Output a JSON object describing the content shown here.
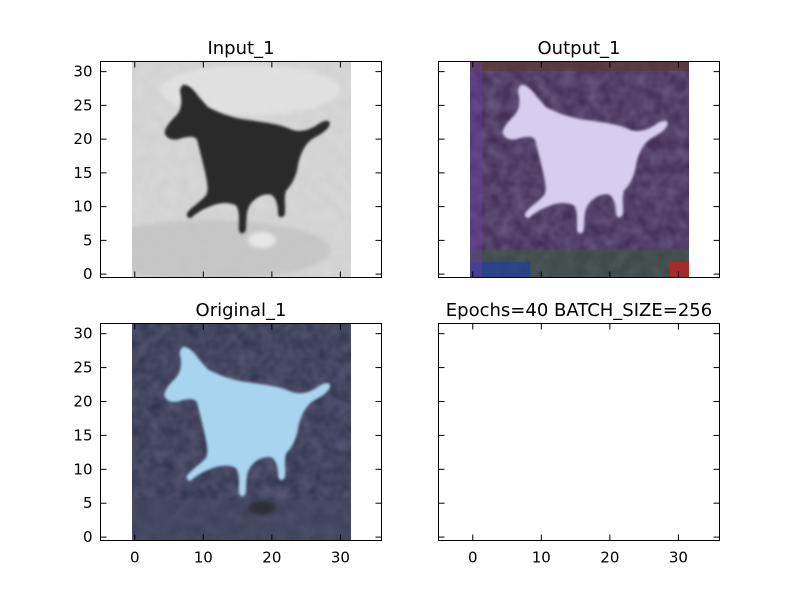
{
  "figure": {
    "background": "#ffffff"
  },
  "chart_data": [
    {
      "type": "image",
      "title": "Input_1",
      "image": "grayscale-dark-horse-on-light-background",
      "xlim": [
        -5,
        36
      ],
      "ylim": [
        31.5,
        -0.5
      ],
      "extent": [
        -0.5,
        31.5
      ],
      "xticks": [],
      "yticks": [
        0,
        5,
        10,
        15,
        20,
        25,
        30
      ],
      "palette": {
        "background": "#cfcfcf",
        "subject": "#2a2a2a",
        "highlight": "#ececec"
      }
    },
    {
      "type": "image",
      "title": "Output_1",
      "image": "light-lavender-horse-on-purple-background",
      "xlim": [
        -5,
        36
      ],
      "ylim": [
        31.5,
        -0.5
      ],
      "extent": [
        -0.5,
        31.5
      ],
      "xticks": [],
      "yticks": [],
      "palette": {
        "background": "#3a2650",
        "subject": "#d8cdf0",
        "edge": "#6a3fa0"
      }
    },
    {
      "type": "image",
      "title": "Original_1",
      "image": "light-blue-horse-on-dark-navy-background",
      "xlim": [
        -5,
        36
      ],
      "ylim": [
        31.5,
        -0.5
      ],
      "extent": [
        -0.5,
        31.5
      ],
      "xticks": [
        0,
        10,
        20,
        30
      ],
      "yticks": [
        0,
        5,
        10,
        15,
        20,
        25,
        30
      ],
      "palette": {
        "background": "#2a3048",
        "subject": "#a9d4ef",
        "shadow": "#474a63"
      }
    },
    {
      "type": "image",
      "title": "Epochs=40 BATCH_SIZE=256",
      "image": "",
      "xlim": [
        -5,
        36
      ],
      "ylim": [
        31.5,
        -0.5
      ],
      "xticks": [
        0,
        10,
        20,
        30
      ],
      "yticks": []
    }
  ]
}
